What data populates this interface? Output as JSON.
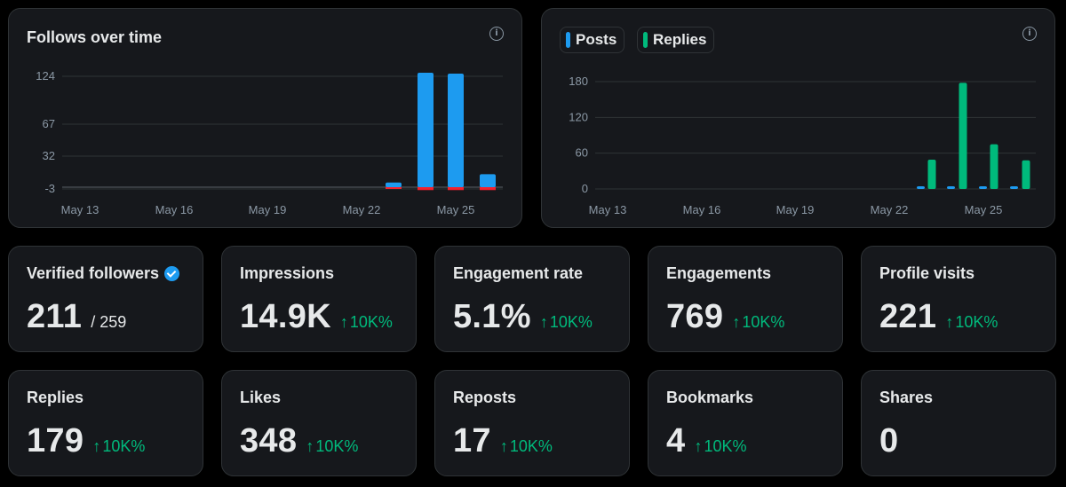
{
  "follows_chart": {
    "title": "Follows over time",
    "info_icon": "info-icon",
    "colors": {
      "gained": "#1d9bf0",
      "lost": "#f4212e"
    },
    "chart_data": {
      "type": "bar",
      "title": "Follows over time",
      "y_ticks": [
        "124",
        "67",
        "32",
        "-3"
      ],
      "x_ticks": [
        "May 13",
        "May 16",
        "May 19",
        "May 22",
        "May 25"
      ],
      "categories": [
        "May 23",
        "May 24",
        "May 25",
        "May 26"
      ],
      "series": [
        {
          "values": [
            5,
            124,
            123,
            14
          ]
        },
        {
          "values": [
            -1,
            -3,
            -3,
            -3
          ]
        }
      ],
      "grid": true
    }
  },
  "posts_chart": {
    "legend": [
      {
        "label": "Posts",
        "color": "#1d9bf0"
      },
      {
        "label": "Replies",
        "color": "#00ba7c"
      }
    ],
    "info_icon": "info-icon",
    "chart_data": {
      "type": "bar",
      "y_ticks": [
        "180",
        "120",
        "60",
        "0"
      ],
      "x_ticks": [
        "May 13",
        "May 16",
        "May 19",
        "May 22",
        "May 25"
      ],
      "categories": [
        "May 23",
        "May 24",
        "May 25",
        "May 26"
      ],
      "series": [
        {
          "name": "Posts",
          "values": [
            3,
            3,
            3,
            3
          ]
        },
        {
          "name": "Replies",
          "values": [
            49,
            178,
            75,
            48
          ]
        }
      ],
      "grid": true
    }
  },
  "stats": [
    {
      "label": "Verified followers",
      "verified_icon": "verified-badge-icon",
      "value": "211",
      "total": "/ 259"
    },
    {
      "label": "Impressions",
      "value": "14.9K",
      "arrow": "↑",
      "change": "10K%"
    },
    {
      "label": "Engagement rate",
      "value": "5.1%",
      "arrow": "↑",
      "change": "10K%"
    },
    {
      "label": "Engagements",
      "value": "769",
      "arrow": "↑",
      "change": "10K%"
    },
    {
      "label": "Profile visits",
      "value": "221",
      "arrow": "↑",
      "change": "10K%"
    },
    {
      "label": "Replies",
      "value": "179",
      "arrow": "↑",
      "change": "10K%"
    },
    {
      "label": "Likes",
      "value": "348",
      "arrow": "↑",
      "change": "10K%"
    },
    {
      "label": "Reposts",
      "value": "17",
      "arrow": "↑",
      "change": "10K%"
    },
    {
      "label": "Bookmarks",
      "value": "4",
      "arrow": "↑",
      "change": "10K%"
    },
    {
      "label": "Shares",
      "value": "0"
    }
  ]
}
